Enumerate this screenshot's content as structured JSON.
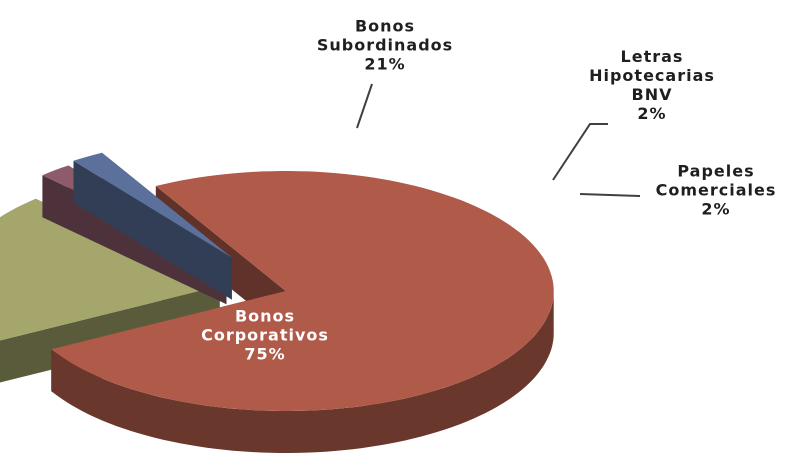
{
  "chart_data": {
    "type": "pie",
    "categories": [
      "Bonos Corporativos",
      "Bonos Subordinados",
      "Letras Hipotecarias BNV",
      "Papeles Comerciales"
    ],
    "values": [
      75,
      21,
      2,
      2
    ],
    "value_labels": [
      "75%",
      "21%",
      "2%",
      "2%"
    ],
    "colors": [
      "#b05b4a",
      "#a4a66b",
      "#8e5b6b",
      "#5b719b"
    ]
  }
}
